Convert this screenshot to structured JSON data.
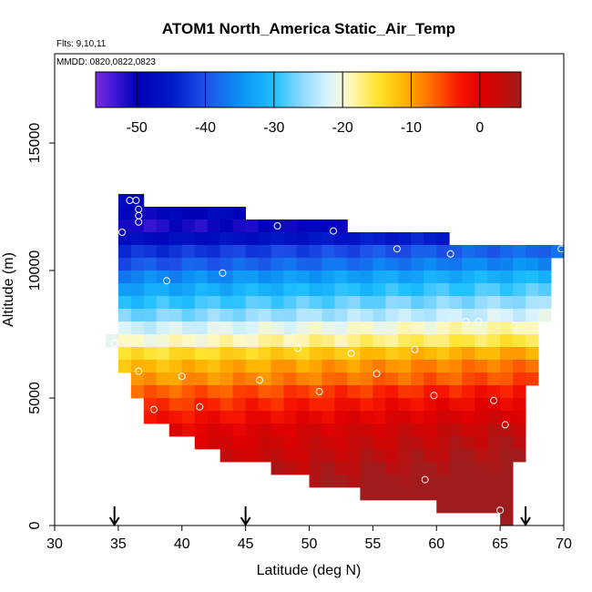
{
  "chart_data": {
    "type": "heatmap",
    "title": "ATOM1 North_America Static_Air_Temp",
    "subtitle_flights": "Flts: 9,10,11",
    "subtitle_dates": "MMDD: 0820,0822,0823",
    "xlabel": "Latitude (deg N)",
    "ylabel": "Altitude (m)",
    "xlim": [
      30,
      70
    ],
    "ylim": [
      0,
      18500
    ],
    "x_ticks": [
      30,
      35,
      40,
      45,
      50,
      55,
      60,
      65,
      70
    ],
    "y_ticks": [
      0,
      5000,
      10000,
      15000
    ],
    "colorbar": {
      "range": [
        -56,
        6
      ],
      "ticks": [
        -50,
        -40,
        -30,
        -20,
        -10,
        0
      ],
      "stops": [
        {
          "v": -56,
          "c": "#7b2be0"
        },
        {
          "v": -53,
          "c": "#3a16d6"
        },
        {
          "v": -50,
          "c": "#0000b8"
        },
        {
          "v": -45,
          "c": "#0018c8"
        },
        {
          "v": -40,
          "c": "#1e50e8"
        },
        {
          "v": -35,
          "c": "#0a90f4"
        },
        {
          "v": -30,
          "c": "#1ec0ff"
        },
        {
          "v": -26,
          "c": "#8cd8ff"
        },
        {
          "v": -22,
          "c": "#dcf4ff"
        },
        {
          "v": -19,
          "c": "#fff8c0"
        },
        {
          "v": -15,
          "c": "#ffe430"
        },
        {
          "v": -11,
          "c": "#ffb400"
        },
        {
          "v": -7,
          "c": "#ff6a00"
        },
        {
          "v": -3,
          "c": "#f81800"
        },
        {
          "v": 0,
          "c": "#e00000"
        },
        {
          "v": 3,
          "c": "#c80808"
        },
        {
          "v": 6,
          "c": "#a01c1c"
        }
      ]
    },
    "cell_width_deg": 1.0,
    "cell_height_m": 500,
    "profile_rows": [
      {
        "alt": 12750,
        "x0": 35,
        "x1": 37
      },
      {
        "alt": 12250,
        "x0": 35,
        "x1": 45
      },
      {
        "alt": 11750,
        "x0": 35,
        "x1": 53
      },
      {
        "alt": 11250,
        "x0": 35,
        "x1": 61
      },
      {
        "alt": 10750,
        "x0": 35,
        "x1": 70
      },
      {
        "alt": 10250,
        "x0": 35,
        "x1": 69
      },
      {
        "alt": 9750,
        "x0": 35,
        "x1": 69
      },
      {
        "alt": 9250,
        "x0": 35,
        "x1": 69
      },
      {
        "alt": 8750,
        "x0": 35,
        "x1": 69
      },
      {
        "alt": 8250,
        "x0": 35,
        "x1": 69
      },
      {
        "alt": 7750,
        "x0": 35,
        "x1": 68
      },
      {
        "alt": 7250,
        "x0": 34,
        "x1": 68
      },
      {
        "alt": 6750,
        "x0": 35,
        "x1": 68
      },
      {
        "alt": 6250,
        "x0": 35,
        "x1": 68
      },
      {
        "alt": 5750,
        "x0": 36,
        "x1": 68
      },
      {
        "alt": 5250,
        "x0": 36,
        "x1": 67
      },
      {
        "alt": 4750,
        "x0": 37,
        "x1": 67
      },
      {
        "alt": 4250,
        "x0": 37,
        "x1": 67
      },
      {
        "alt": 3750,
        "x0": 39,
        "x1": 67
      },
      {
        "alt": 3250,
        "x0": 41,
        "x1": 67
      },
      {
        "alt": 2750,
        "x0": 43,
        "x1": 67
      },
      {
        "alt": 2250,
        "x0": 47,
        "x1": 66
      },
      {
        "alt": 1750,
        "x0": 50,
        "x1": 66
      },
      {
        "alt": 1250,
        "x0": 54,
        "x1": 66
      },
      {
        "alt": 750,
        "x0": 60,
        "x1": 66
      },
      {
        "alt": 250,
        "x0": 65,
        "x1": 66
      }
    ],
    "temperature_profile": [
      {
        "alt": 12750,
        "t": -49
      },
      {
        "alt": 12250,
        "t": -50
      },
      {
        "alt": 11750,
        "t": -52
      },
      {
        "alt": 11250,
        "t": -48
      },
      {
        "alt": 10750,
        "t": -43
      },
      {
        "alt": 10250,
        "t": -40
      },
      {
        "alt": 9750,
        "t": -36
      },
      {
        "alt": 9250,
        "t": -33
      },
      {
        "alt": 8750,
        "t": -30
      },
      {
        "alt": 8250,
        "t": -27
      },
      {
        "alt": 7750,
        "t": -23
      },
      {
        "alt": 7250,
        "t": -20
      },
      {
        "alt": 6750,
        "t": -15
      },
      {
        "alt": 6250,
        "t": -12
      },
      {
        "alt": 5750,
        "t": -10
      },
      {
        "alt": 5250,
        "t": -7
      },
      {
        "alt": 4750,
        "t": -5
      },
      {
        "alt": 4250,
        "t": -3
      },
      {
        "alt": 3750,
        "t": -1
      },
      {
        "alt": 3250,
        "t": 0
      },
      {
        "alt": 2750,
        "t": 1
      },
      {
        "alt": 2250,
        "t": 2
      },
      {
        "alt": 1750,
        "t": 3
      },
      {
        "alt": 1250,
        "t": 4
      },
      {
        "alt": 750,
        "t": 5
      },
      {
        "alt": 250,
        "t": 6
      }
    ],
    "lat_gradient_per_deg": 0.15,
    "observations": [
      {
        "lat": 35.9,
        "alt": 12750
      },
      {
        "lat": 36.4,
        "alt": 12750
      },
      {
        "lat": 36.6,
        "alt": 12400
      },
      {
        "lat": 36.6,
        "alt": 12150
      },
      {
        "lat": 36.6,
        "alt": 11900
      },
      {
        "lat": 35.3,
        "alt": 11500
      },
      {
        "lat": 47.5,
        "alt": 11750
      },
      {
        "lat": 51.9,
        "alt": 11550
      },
      {
        "lat": 56.9,
        "alt": 10850
      },
      {
        "lat": 61.1,
        "alt": 10650
      },
      {
        "lat": 69.8,
        "alt": 10850
      },
      {
        "lat": 43.2,
        "alt": 9900
      },
      {
        "lat": 38.8,
        "alt": 9600
      },
      {
        "lat": 62.3,
        "alt": 8000
      },
      {
        "lat": 63.3,
        "alt": 8000
      },
      {
        "lat": 66.1,
        "alt": 7850
      },
      {
        "lat": 34.7,
        "alt": 7150
      },
      {
        "lat": 49.1,
        "alt": 6950
      },
      {
        "lat": 53.3,
        "alt": 6750
      },
      {
        "lat": 58.3,
        "alt": 6900
      },
      {
        "lat": 36.6,
        "alt": 6050
      },
      {
        "lat": 40.0,
        "alt": 5850
      },
      {
        "lat": 46.1,
        "alt": 5700
      },
      {
        "lat": 55.3,
        "alt": 5950
      },
      {
        "lat": 50.8,
        "alt": 5250
      },
      {
        "lat": 59.8,
        "alt": 5100
      },
      {
        "lat": 64.5,
        "alt": 4900
      },
      {
        "lat": 41.4,
        "alt": 4650
      },
      {
        "lat": 37.8,
        "alt": 4550
      },
      {
        "lat": 65.4,
        "alt": 3950
      },
      {
        "lat": 59.1,
        "alt": 1800
      },
      {
        "lat": 65.0,
        "alt": 600
      }
    ],
    "arrow_latitudes": [
      34.7,
      45.0,
      67.0
    ]
  }
}
